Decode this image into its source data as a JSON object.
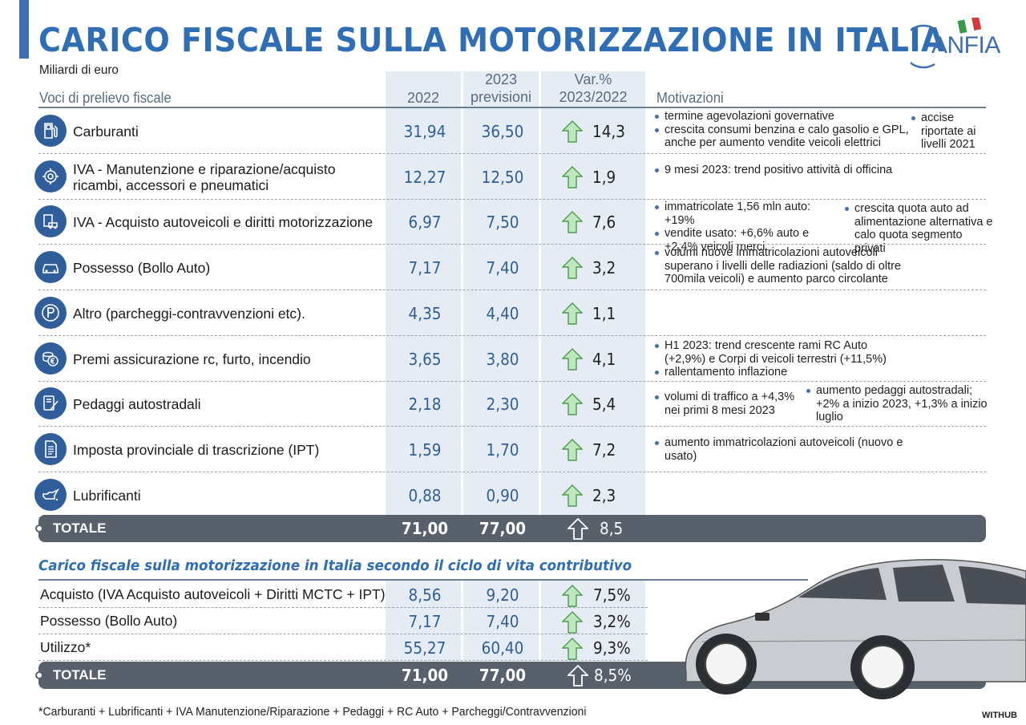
{
  "title": "CARICO FISCALE SULLA MOTORIZZAZIONE IN ITALIA",
  "subtitle": "Miliardi di euro",
  "logo": {
    "text": "ANFIA"
  },
  "headers": {
    "voci": "Voci di prelievo fiscale",
    "y2022": "2022",
    "y2023a": "2023",
    "y2023b": "previsioni",
    "vara": "Var.%",
    "varb": "2023/2022",
    "motivazioni": "Motivazioni"
  },
  "colors": {
    "accent": "#2f6db4",
    "dark_icon": "#2f5e9a",
    "total_bar": "#58606b",
    "column_shade": "#e6ecf3",
    "arrow_green": "#8fcf8f"
  },
  "rows": [
    {
      "label": "Carburanti",
      "icon": "fuel-pump-icon",
      "v2022": "31,94",
      "v2023": "36,50",
      "var": "14,3",
      "mot": [
        [
          "termine agevolazioni governative",
          "crescita consumi benzina e calo gasolio e GPL, anche per aumento vendite veicoli elettrici"
        ],
        [
          "accise riportate ai livelli 2021"
        ]
      ]
    },
    {
      "label": "IVA - Manutenzione e riparazione/acquisto ricambi, accessori e pneumatici",
      "icon": "gear-tools-icon",
      "v2022": "12,27",
      "v2023": "12,50",
      "var": "1,9",
      "mot": [
        [
          "9 mesi 2023: trend positivo attività di officina"
        ]
      ]
    },
    {
      "label": "IVA - Acquisto autoveicoli e diritti motorizzazione",
      "icon": "vehicle-tax-icon",
      "v2022": "6,97",
      "v2023": "7,50",
      "var": "7,6",
      "mot": [
        [
          "immatricolate 1,56 mln auto: +19%",
          "vendite usato: +6,6% auto e +2,4% veicoli merci"
        ],
        [
          "crescita quota auto ad alimentazione alternativa e calo quota segmento privati"
        ]
      ]
    },
    {
      "label": "Possesso (Bollo Auto)",
      "icon": "car-icon",
      "v2022": "7,17",
      "v2023": "7,40",
      "var": "3,2",
      "mot": [
        [
          "volumi nuove immatricolazioni autoveicoli superano i livelli delle radiazioni (saldo di oltre 700mila veicoli) e aumento parco circolante"
        ]
      ]
    },
    {
      "label": "Altro (parcheggi-contravvenzioni etc).",
      "icon": "parking-icon",
      "v2022": "4,35",
      "v2023": "4,40",
      "var": "1,1",
      "mot": []
    },
    {
      "label": "Premi assicurazione rc, furto, incendio",
      "icon": "euro-coins-icon",
      "v2022": "3,65",
      "v2023": "3,80",
      "var": "4,1",
      "mot": [
        [
          "H1 2023: trend crescente rami RC Auto (+2,9%) e Corpi di veicoli terrestri (+11,5%)",
          "rallentamento inflazione"
        ]
      ]
    },
    {
      "label": "Pedaggi autostradali",
      "icon": "toll-icon",
      "v2022": "2,18",
      "v2023": "2,30",
      "var": "5,4",
      "mot": [
        [
          "volumi di traffico a +4,3% nei primi 8 mesi 2023"
        ],
        [
          "aumento pedaggi autostradali; +2% a inizio 2023, +1,3% a inizio luglio"
        ]
      ]
    },
    {
      "label": "Imposta provinciale di trascrizione (IPT)",
      "icon": "document-icon",
      "v2022": "1,59",
      "v2023": "1,70",
      "var": "7,2",
      "mot": [
        [
          "aumento immatricolazioni autoveicoli (nuovo e usato)"
        ]
      ]
    },
    {
      "label": "Lubrificanti",
      "icon": "oil-can-icon",
      "v2022": "0,88",
      "v2023": "0,90",
      "var": "2,3",
      "mot": []
    }
  ],
  "total": {
    "label": "TOTALE",
    "v2022": "71,00",
    "v2023": "77,00",
    "var": "8,5"
  },
  "section2": {
    "title": "Carico fiscale sulla motorizzazione in Italia secondo il ciclo di vita contributivo",
    "rows": [
      {
        "label": "Acquisto (IVA Acquisto autoveicoli + Diritti MCTC + IPT)",
        "v2022": "8,56",
        "v2023": "9,20",
        "var": "7,5%"
      },
      {
        "label": "Possesso (Bollo Auto)",
        "v2022": "7,17",
        "v2023": "7,40",
        "var": "3,2%"
      },
      {
        "label": "Utilizzo*",
        "v2022": "55,27",
        "v2023": "60,40",
        "var": "9,3%"
      }
    ],
    "total": {
      "label": "TOTALE",
      "v2022": "71,00",
      "v2023": "77,00",
      "var": "8,5%"
    }
  },
  "footnote": "*Carburanti + Lubrificanti + IVA Manutenzione/Riparazione + Pedaggi + RC Auto + Parcheggi/Contravvenzioni",
  "credit": "WITHUB",
  "chart_data": {
    "type": "table",
    "title": "CARICO FISCALE SULLA MOTORIZZAZIONE IN ITALIA",
    "subtitle": "Miliardi di euro",
    "columns": [
      "Voci di prelievo fiscale",
      "2022",
      "2023 previsioni",
      "Var.% 2023/2022",
      "Motivazioni"
    ],
    "categories": [
      "Carburanti",
      "IVA - Manutenzione e riparazione/acquisto ricambi, accessori e pneumatici",
      "IVA - Acquisto autoveicoli e diritti motorizzazione",
      "Possesso (Bollo Auto)",
      "Altro (parcheggi-contravvenzioni etc).",
      "Premi assicurazione rc, furto, incendio",
      "Pedaggi autostradali",
      "Imposta provinciale di trascrizione (IPT)",
      "Lubrificanti",
      "TOTALE"
    ],
    "series": [
      {
        "name": "2022",
        "values": [
          31.94,
          12.27,
          6.97,
          7.17,
          4.35,
          3.65,
          2.18,
          1.59,
          0.88,
          71.0
        ]
      },
      {
        "name": "2023 previsioni",
        "values": [
          36.5,
          12.5,
          7.5,
          7.4,
          4.4,
          3.8,
          2.3,
          1.7,
          0.9,
          77.0
        ]
      },
      {
        "name": "Var.% 2023/2022",
        "values": [
          14.3,
          1.9,
          7.6,
          3.2,
          1.1,
          4.1,
          5.4,
          7.2,
          2.3,
          8.5
        ]
      }
    ],
    "secondary_table": {
      "title": "Carico fiscale sulla motorizzazione in Italia secondo il ciclo di vita contributivo",
      "categories": [
        "Acquisto (IVA Acquisto autoveicoli + Diritti MCTC + IPT)",
        "Possesso (Bollo Auto)",
        "Utilizzo*",
        "TOTALE"
      ],
      "series": [
        {
          "name": "2022",
          "values": [
            8.56,
            7.17,
            55.27,
            71.0
          ]
        },
        {
          "name": "2023 previsioni",
          "values": [
            9.2,
            7.4,
            60.4,
            77.0
          ]
        },
        {
          "name": "Var.% 2023/2022",
          "values": [
            7.5,
            3.2,
            9.3,
            8.5
          ]
        }
      ]
    }
  }
}
